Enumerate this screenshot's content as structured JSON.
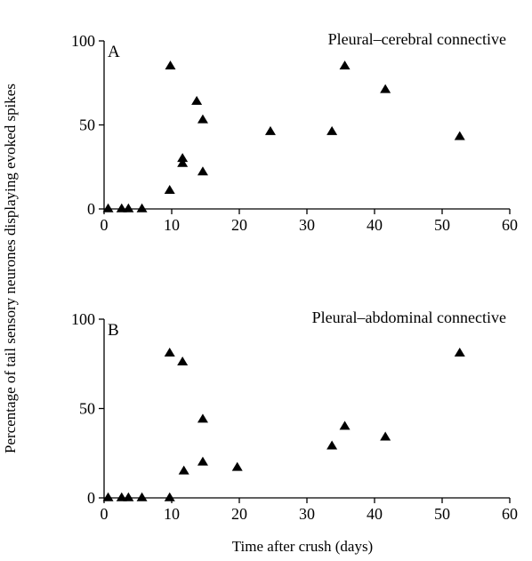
{
  "figure": {
    "ylabel": "Percentage of tail sensory neurones displaying evoked spikes",
    "xlabel": "Time after crush (days)"
  },
  "chart_data": [
    {
      "type": "scatter",
      "panel_label": "A",
      "title": "Pleural–cerebral connective",
      "xlim": [
        0,
        60
      ],
      "ylim": [
        0,
        100
      ],
      "xticks": [
        0,
        10,
        20,
        30,
        40,
        50,
        60
      ],
      "yticks": [
        0,
        50,
        100
      ],
      "x": [
        0.6,
        2.6,
        3.6,
        5.6,
        9.7,
        9.8,
        11.6,
        11.6,
        13.7,
        14.6,
        14.6,
        24.6,
        33.7,
        35.6,
        41.6,
        52.6
      ],
      "y": [
        0,
        0,
        0,
        0,
        11,
        85,
        27,
        30,
        64,
        53,
        22,
        46,
        46,
        85,
        71,
        43
      ]
    },
    {
      "type": "scatter",
      "panel_label": "B",
      "title": "Pleural–abdominal connective",
      "xlim": [
        0,
        60
      ],
      "ylim": [
        0,
        100
      ],
      "xticks": [
        0,
        10,
        20,
        30,
        40,
        50,
        60
      ],
      "yticks": [
        0,
        50,
        100
      ],
      "x": [
        0.6,
        2.6,
        3.6,
        5.6,
        9.7,
        9.7,
        11.6,
        11.8,
        14.6,
        14.6,
        19.7,
        33.7,
        35.6,
        41.6,
        52.6
      ],
      "y": [
        0,
        0,
        0,
        0,
        0,
        81,
        76,
        15,
        44,
        20,
        17,
        29,
        40,
        34,
        81
      ]
    }
  ]
}
